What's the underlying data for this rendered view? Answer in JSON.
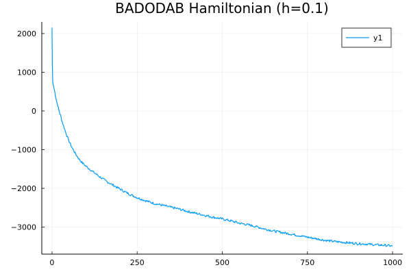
{
  "chart_data": {
    "type": "line",
    "title": "BADODAB Hamiltonian (h=0.1)",
    "xlabel": "",
    "ylabel": "",
    "xlim": [
      -30,
      1030
    ],
    "ylim": [
      -3700,
      2300
    ],
    "xticks": [
      0,
      250,
      500,
      750,
      1000
    ],
    "yticks": [
      2000,
      1000,
      0,
      -1000,
      -2000,
      -3000
    ],
    "xtick_labels": [
      "0",
      "250",
      "500",
      "750",
      "1000"
    ],
    "ytick_labels": [
      "2000",
      "1000",
      "0",
      "−1000",
      "−2000",
      "−3000"
    ],
    "grid": true,
    "legend": {
      "position": "top-right",
      "entries": [
        "y1"
      ]
    },
    "series": [
      {
        "name": "y1",
        "color": "#009af9",
        "x": [
          0,
          1,
          2,
          3,
          5,
          8,
          10,
          15,
          20,
          25,
          30,
          40,
          50,
          60,
          70,
          80,
          90,
          100,
          120,
          140,
          160,
          180,
          200,
          225,
          250,
          275,
          300,
          325,
          350,
          375,
          400,
          425,
          450,
          475,
          500,
          525,
          550,
          575,
          600,
          625,
          650,
          675,
          700,
          725,
          750,
          775,
          800,
          825,
          850,
          875,
          900,
          925,
          950,
          975,
          1000
        ],
        "values": [
          2150,
          1200,
          800,
          700,
          620,
          500,
          400,
          200,
          30,
          -120,
          -280,
          -550,
          -780,
          -970,
          -1120,
          -1250,
          -1350,
          -1430,
          -1570,
          -1700,
          -1820,
          -1920,
          -2020,
          -2140,
          -2240,
          -2320,
          -2390,
          -2440,
          -2490,
          -2540,
          -2600,
          -2650,
          -2700,
          -2750,
          -2790,
          -2840,
          -2900,
          -2940,
          -2990,
          -3050,
          -3100,
          -3140,
          -3180,
          -3220,
          -3260,
          -3300,
          -3340,
          -3370,
          -3390,
          -3410,
          -3430,
          -3440,
          -3460,
          -3470,
          -3490
        ]
      }
    ]
  }
}
